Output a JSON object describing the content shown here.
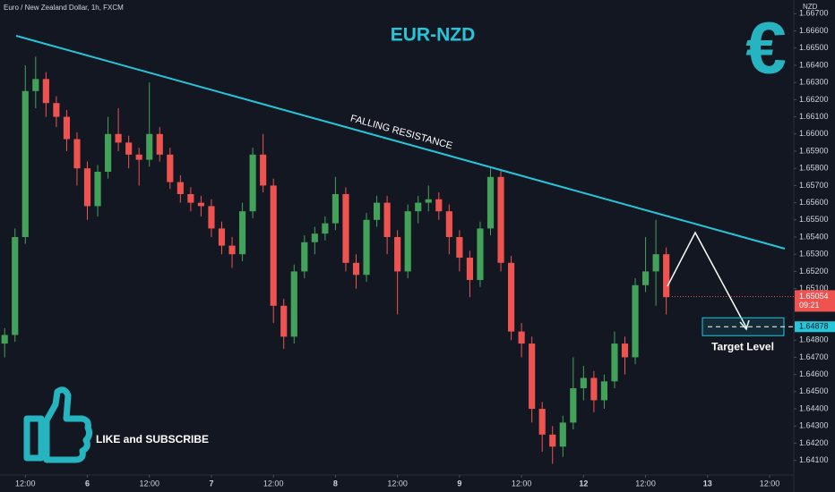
{
  "header": "Euro / New Zealand Dollar, 1h, FXCM",
  "currency": "NZD",
  "chart_data": {
    "type": "candlestick",
    "title": "EUR-NZD",
    "trendline_label": "FALLING RESISTANCE",
    "up_color": "#43a25a",
    "down_color": "#ef5350",
    "x": [
      8,
      10,
      12,
      14,
      16,
      18,
      20,
      22,
      24,
      26,
      28,
      30,
      32,
      34,
      36,
      38,
      40,
      42,
      44,
      46,
      48,
      50,
      52,
      54,
      56,
      58,
      60,
      62,
      64,
      66,
      68,
      70,
      72,
      74,
      76,
      78,
      80,
      82,
      84,
      86,
      88,
      90,
      92,
      94,
      96,
      98,
      100,
      102,
      104,
      106,
      108,
      110,
      112,
      114,
      116,
      118,
      120,
      122,
      124,
      126,
      128,
      130,
      132,
      134,
      136
    ],
    "open": [
      1.6478,
      1.6483,
      1.654,
      1.6625,
      1.6632,
      1.6618,
      1.661,
      1.6597,
      1.658,
      1.6558,
      1.6578,
      1.66,
      1.6595,
      1.6588,
      1.6585,
      1.66,
      1.6588,
      1.6572,
      1.6565,
      1.656,
      1.6558,
      1.6545,
      1.6535,
      1.653,
      1.6555,
      1.6588,
      1.657,
      1.65,
      1.6482,
      1.652,
      1.6537,
      1.6542,
      1.6548,
      1.6565,
      1.6525,
      1.6518,
      1.655,
      1.656,
      1.654,
      1.652,
      1.6555,
      1.656,
      1.6562,
      1.6555,
      1.654,
      1.6528,
      1.6515,
      1.6545,
      1.6575,
      1.6525,
      1.6485,
      1.6478,
      1.644,
      1.6425,
      1.6418,
      1.6432,
      1.6452,
      1.6458,
      1.6445,
      1.6456,
      1.6478,
      1.647,
      1.6512,
      1.652,
      1.653
    ],
    "high": [
      1.6487,
      1.6545,
      1.664,
      1.6645,
      1.6636,
      1.6622,
      1.6614,
      1.6601,
      1.6584,
      1.6582,
      1.661,
      1.6615,
      1.6599,
      1.6592,
      1.663,
      1.6604,
      1.6592,
      1.6576,
      1.6569,
      1.6564,
      1.6562,
      1.6549,
      1.654,
      1.656,
      1.6592,
      1.66,
      1.6574,
      1.6504,
      1.6524,
      1.6541,
      1.6546,
      1.6552,
      1.6575,
      1.6569,
      1.653,
      1.6554,
      1.6564,
      1.6564,
      1.6544,
      1.6559,
      1.6564,
      1.657,
      1.6566,
      1.6559,
      1.6544,
      1.6532,
      1.6549,
      1.658,
      1.6579,
      1.6529,
      1.649,
      1.6482,
      1.6444,
      1.643,
      1.6436,
      1.647,
      1.6465,
      1.6462,
      1.646,
      1.6485,
      1.6482,
      1.6516,
      1.654,
      1.655,
      1.6534
    ],
    "low": [
      1.647,
      1.6479,
      1.6536,
      1.6615,
      1.661,
      1.6604,
      1.659,
      1.657,
      1.655,
      1.6552,
      1.6574,
      1.659,
      1.658,
      1.657,
      1.6581,
      1.6584,
      1.6568,
      1.656,
      1.6555,
      1.6552,
      1.654,
      1.653,
      1.6522,
      1.6526,
      1.6551,
      1.6566,
      1.649,
      1.6475,
      1.6478,
      1.6516,
      1.653,
      1.6538,
      1.6544,
      1.652,
      1.651,
      1.6514,
      1.6546,
      1.653,
      1.6495,
      1.6516,
      1.6548,
      1.6555,
      1.655,
      1.653,
      1.652,
      1.6505,
      1.6511,
      1.6541,
      1.652,
      1.648,
      1.647,
      1.6432,
      1.6415,
      1.6408,
      1.6412,
      1.6428,
      1.6445,
      1.6438,
      1.644,
      1.6452,
      1.646,
      1.6466,
      1.6508,
      1.65,
      1.6495
    ],
    "close": [
      1.6483,
      1.654,
      1.6625,
      1.6632,
      1.6618,
      1.661,
      1.6597,
      1.658,
      1.6558,
      1.6578,
      1.66,
      1.6595,
      1.6588,
      1.6585,
      1.66,
      1.6588,
      1.6572,
      1.6565,
      1.656,
      1.6558,
      1.6545,
      1.6535,
      1.653,
      1.6555,
      1.6588,
      1.657,
      1.65,
      1.6482,
      1.652,
      1.6537,
      1.6542,
      1.6548,
      1.6565,
      1.6525,
      1.6518,
      1.655,
      1.656,
      1.654,
      1.652,
      1.6555,
      1.656,
      1.6562,
      1.6555,
      1.654,
      1.6528,
      1.6515,
      1.6545,
      1.6575,
      1.6525,
      1.6485,
      1.6478,
      1.644,
      1.6425,
      1.6418,
      1.6432,
      1.6452,
      1.6458,
      1.6445,
      1.6456,
      1.6478,
      1.647,
      1.6512,
      1.652,
      1.653,
      1.6505
    ],
    "xlim": [
      7.1,
      160.5
    ],
    "xticks": [
      {
        "value": 12,
        "label": "12:00"
      },
      {
        "value": 24,
        "label": "6"
      },
      {
        "value": 36,
        "label": "12:00"
      },
      {
        "value": 48,
        "label": "7"
      },
      {
        "value": 60,
        "label": "12:00"
      },
      {
        "value": 72,
        "label": "8"
      },
      {
        "value": 84,
        "label": "12:00"
      },
      {
        "value": 96,
        "label": "9"
      },
      {
        "value": 108,
        "label": "12:00"
      },
      {
        "value": 120,
        "label": "12"
      },
      {
        "value": 132,
        "label": "12:00"
      },
      {
        "value": 144,
        "label": "13"
      },
      {
        "value": 156,
        "label": "12:00"
      }
    ],
    "ylim": [
      1.6402,
      1.6678
    ],
    "yticks": [
      {
        "value": 1.641,
        "label": "1.64100"
      },
      {
        "value": 1.642,
        "label": "1.64200"
      },
      {
        "value": 1.643,
        "label": "1.64300"
      },
      {
        "value": 1.644,
        "label": "1.64400"
      },
      {
        "value": 1.645,
        "label": "1.64500"
      },
      {
        "value": 1.646,
        "label": "1.64600"
      },
      {
        "value": 1.647,
        "label": "1.64700"
      },
      {
        "value": 1.648,
        "label": "1.64800"
      },
      {
        "value": 1.651,
        "label": "1.65100"
      },
      {
        "value": 1.652,
        "label": "1.65200"
      },
      {
        "value": 1.653,
        "label": "1.65300"
      },
      {
        "value": 1.654,
        "label": "1.65400"
      },
      {
        "value": 1.655,
        "label": "1.65500"
      },
      {
        "value": 1.656,
        "label": "1.65600"
      },
      {
        "value": 1.657,
        "label": "1.65700"
      },
      {
        "value": 1.658,
        "label": "1.65800"
      },
      {
        "value": 1.659,
        "label": "1.65900"
      },
      {
        "value": 1.66,
        "label": "1.66000"
      },
      {
        "value": 1.661,
        "label": "1.66100"
      },
      {
        "value": 1.662,
        "label": "1.66200"
      },
      {
        "value": 1.663,
        "label": "1.66300"
      },
      {
        "value": 1.664,
        "label": "1.66400"
      },
      {
        "value": 1.665,
        "label": "1.66500"
      },
      {
        "value": 1.666,
        "label": "1.66600"
      },
      {
        "value": 1.667,
        "label": "1.66700"
      }
    ],
    "grid": false,
    "last_price": 1.65054,
    "countdown": "09:21",
    "target_price": 1.64878,
    "target_label": "Target Level"
  },
  "euro_symbol": "€",
  "cta": "LIKE and SUBSCRIBE"
}
